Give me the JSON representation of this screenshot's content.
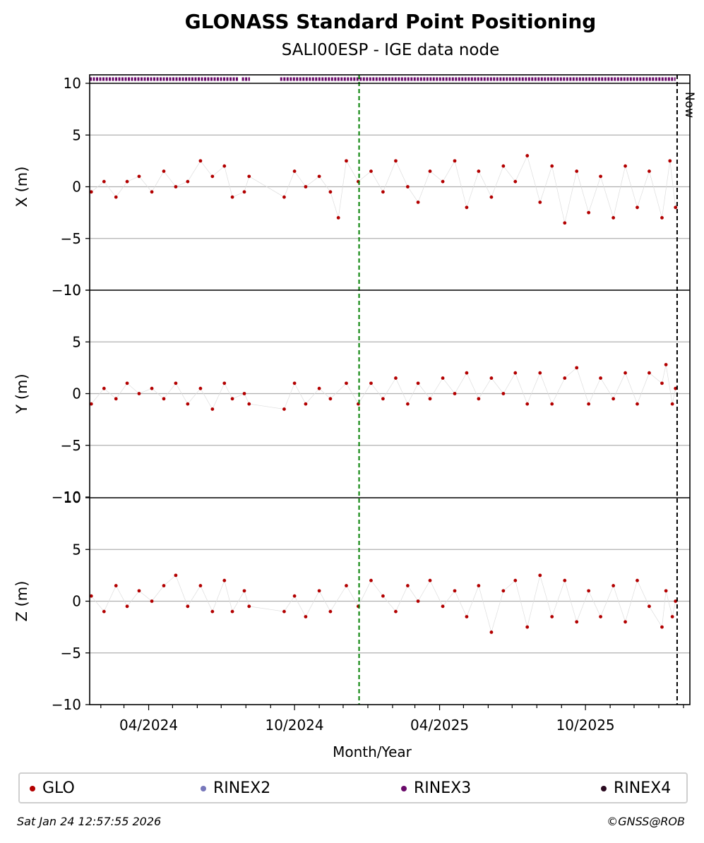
{
  "title": "GLONASS Standard Point Positioning",
  "subtitle": "SALI00ESP - IGE data node",
  "now_label": "Now",
  "footer_date": "Sat Jan 24 12:57:55 2026",
  "footer_copy": "©GNSS@ROB",
  "legend": [
    {
      "name": "GLO",
      "color": "#b30000"
    },
    {
      "name": "RINEX2",
      "color": "#7777bb"
    },
    {
      "name": "RINEX3",
      "color": "#6a0a6a"
    },
    {
      "name": "RINEX4",
      "color": "#2a0a20"
    }
  ],
  "chart_data": {
    "type": "scatter",
    "xlabel": "Month/Year",
    "x_ticks": [
      "04/2024",
      "10/2024",
      "04/2025",
      "10/2025"
    ],
    "x_range": [
      "2024-01-18",
      "2026-02-09"
    ],
    "marker_date": "2024-12-21",
    "now_date": "2026-01-24",
    "ylim": [
      -10,
      10
    ],
    "y_ticks": [
      -10,
      -5,
      0,
      5,
      10
    ],
    "grid": true,
    "series_color": "#b30000",
    "rinex3_coverage": [
      [
        "2024-01-18",
        "2024-07-23"
      ],
      [
        "2024-07-27",
        "2024-08-06"
      ],
      [
        "2024-09-13",
        "2026-01-22"
      ]
    ],
    "panels": [
      {
        "ylabel": "X (m)",
        "points": [
          [
            "2024-01-20",
            -0.5
          ],
          [
            "2024-02-05",
            0.5
          ],
          [
            "2024-02-20",
            -1.0
          ],
          [
            "2024-03-05",
            0.5
          ],
          [
            "2024-03-20",
            1.0
          ],
          [
            "2024-04-05",
            -0.5
          ],
          [
            "2024-04-20",
            1.5
          ],
          [
            "2024-05-05",
            0.0
          ],
          [
            "2024-05-20",
            0.5
          ],
          [
            "2024-06-05",
            2.5
          ],
          [
            "2024-06-20",
            1.0
          ],
          [
            "2024-07-05",
            2.0
          ],
          [
            "2024-07-15",
            -1.0
          ],
          [
            "2024-07-30",
            -0.5
          ],
          [
            "2024-08-05",
            1.0
          ],
          [
            "2024-09-18",
            -1.0
          ],
          [
            "2024-10-01",
            1.5
          ],
          [
            "2024-10-15",
            0.0
          ],
          [
            "2024-11-01",
            1.0
          ],
          [
            "2024-11-15",
            -0.5
          ],
          [
            "2024-11-25",
            -3.0
          ],
          [
            "2024-12-05",
            2.5
          ],
          [
            "2024-12-20",
            0.5
          ],
          [
            "2025-01-05",
            1.5
          ],
          [
            "2025-01-20",
            -0.5
          ],
          [
            "2025-02-05",
            2.5
          ],
          [
            "2025-02-20",
            0.0
          ],
          [
            "2025-03-05",
            -1.5
          ],
          [
            "2025-03-20",
            1.5
          ],
          [
            "2025-04-05",
            0.5
          ],
          [
            "2025-04-20",
            2.5
          ],
          [
            "2025-05-05",
            -2.0
          ],
          [
            "2025-05-20",
            1.5
          ],
          [
            "2025-06-05",
            -1.0
          ],
          [
            "2025-06-20",
            2.0
          ],
          [
            "2025-07-05",
            0.5
          ],
          [
            "2025-07-20",
            3.0
          ],
          [
            "2025-08-05",
            -1.5
          ],
          [
            "2025-08-20",
            2.0
          ],
          [
            "2025-09-05",
            -3.5
          ],
          [
            "2025-09-20",
            1.5
          ],
          [
            "2025-10-05",
            -2.5
          ],
          [
            "2025-10-20",
            1.0
          ],
          [
            "2025-11-05",
            -3.0
          ],
          [
            "2025-11-20",
            2.0
          ],
          [
            "2025-12-05",
            -2.0
          ],
          [
            "2025-12-20",
            1.5
          ],
          [
            "2026-01-05",
            -3.0
          ],
          [
            "2026-01-15",
            2.5
          ],
          [
            "2026-01-22",
            -2.0
          ]
        ]
      },
      {
        "ylabel": "Y (m)",
        "points": [
          [
            "2024-01-20",
            -1.0
          ],
          [
            "2024-02-05",
            0.5
          ],
          [
            "2024-02-20",
            -0.5
          ],
          [
            "2024-03-05",
            1.0
          ],
          [
            "2024-03-20",
            0.0
          ],
          [
            "2024-04-05",
            0.5
          ],
          [
            "2024-04-20",
            -0.5
          ],
          [
            "2024-05-05",
            1.0
          ],
          [
            "2024-05-20",
            -1.0
          ],
          [
            "2024-06-05",
            0.5
          ],
          [
            "2024-06-20",
            -1.5
          ],
          [
            "2024-07-05",
            1.0
          ],
          [
            "2024-07-15",
            -0.5
          ],
          [
            "2024-07-30",
            0.0
          ],
          [
            "2024-08-05",
            -1.0
          ],
          [
            "2024-09-18",
            -1.5
          ],
          [
            "2024-10-01",
            1.0
          ],
          [
            "2024-10-15",
            -1.0
          ],
          [
            "2024-11-01",
            0.5
          ],
          [
            "2024-11-15",
            -0.5
          ],
          [
            "2024-12-05",
            1.0
          ],
          [
            "2024-12-20",
            -1.0
          ],
          [
            "2025-01-05",
            1.0
          ],
          [
            "2025-01-20",
            -0.5
          ],
          [
            "2025-02-05",
            1.5
          ],
          [
            "2025-02-20",
            -1.0
          ],
          [
            "2025-03-05",
            1.0
          ],
          [
            "2025-03-20",
            -0.5
          ],
          [
            "2025-04-05",
            1.5
          ],
          [
            "2025-04-20",
            0.0
          ],
          [
            "2025-05-05",
            2.0
          ],
          [
            "2025-05-20",
            -0.5
          ],
          [
            "2025-06-05",
            1.5
          ],
          [
            "2025-06-20",
            0.0
          ],
          [
            "2025-07-05",
            2.0
          ],
          [
            "2025-07-20",
            -1.0
          ],
          [
            "2025-08-05",
            2.0
          ],
          [
            "2025-08-20",
            -1.0
          ],
          [
            "2025-09-05",
            1.5
          ],
          [
            "2025-09-20",
            2.5
          ],
          [
            "2025-10-05",
            -1.0
          ],
          [
            "2025-10-20",
            1.5
          ],
          [
            "2025-11-05",
            -0.5
          ],
          [
            "2025-11-20",
            2.0
          ],
          [
            "2025-12-05",
            -1.0
          ],
          [
            "2025-12-20",
            2.0
          ],
          [
            "2026-01-05",
            1.0
          ],
          [
            "2026-01-10",
            2.8
          ],
          [
            "2026-01-18",
            -1.0
          ],
          [
            "2026-01-22",
            0.5
          ]
        ]
      },
      {
        "ylabel": "Z (m)",
        "points": [
          [
            "2024-01-20",
            0.5
          ],
          [
            "2024-02-05",
            -1.0
          ],
          [
            "2024-02-20",
            1.5
          ],
          [
            "2024-03-05",
            -0.5
          ],
          [
            "2024-03-20",
            1.0
          ],
          [
            "2024-04-05",
            0.0
          ],
          [
            "2024-04-20",
            1.5
          ],
          [
            "2024-05-05",
            2.5
          ],
          [
            "2024-05-20",
            -0.5
          ],
          [
            "2024-06-05",
            1.5
          ],
          [
            "2024-06-20",
            -1.0
          ],
          [
            "2024-07-05",
            2.0
          ],
          [
            "2024-07-15",
            -1.0
          ],
          [
            "2024-07-30",
            1.0
          ],
          [
            "2024-08-05",
            -0.5
          ],
          [
            "2024-09-18",
            -1.0
          ],
          [
            "2024-10-01",
            0.5
          ],
          [
            "2024-10-15",
            -1.5
          ],
          [
            "2024-11-01",
            1.0
          ],
          [
            "2024-11-15",
            -1.0
          ],
          [
            "2024-12-05",
            1.5
          ],
          [
            "2024-12-20",
            -0.5
          ],
          [
            "2025-01-05",
            2.0
          ],
          [
            "2025-01-20",
            0.5
          ],
          [
            "2025-02-05",
            -1.0
          ],
          [
            "2025-02-20",
            1.5
          ],
          [
            "2025-03-05",
            0.0
          ],
          [
            "2025-03-20",
            2.0
          ],
          [
            "2025-04-05",
            -0.5
          ],
          [
            "2025-04-20",
            1.0
          ],
          [
            "2025-05-05",
            -1.5
          ],
          [
            "2025-05-20",
            1.5
          ],
          [
            "2025-06-05",
            -3.0
          ],
          [
            "2025-06-20",
            1.0
          ],
          [
            "2025-07-05",
            2.0
          ],
          [
            "2025-07-20",
            -2.5
          ],
          [
            "2025-08-05",
            2.5
          ],
          [
            "2025-08-20",
            -1.5
          ],
          [
            "2025-09-05",
            2.0
          ],
          [
            "2025-09-20",
            -2.0
          ],
          [
            "2025-10-05",
            1.0
          ],
          [
            "2025-10-20",
            -1.5
          ],
          [
            "2025-11-05",
            1.5
          ],
          [
            "2025-11-20",
            -2.0
          ],
          [
            "2025-12-05",
            2.0
          ],
          [
            "2025-12-20",
            -0.5
          ],
          [
            "2026-01-05",
            -2.5
          ],
          [
            "2026-01-10",
            1.0
          ],
          [
            "2026-01-18",
            -1.5
          ],
          [
            "2026-01-22",
            0.0
          ]
        ]
      }
    ]
  }
}
